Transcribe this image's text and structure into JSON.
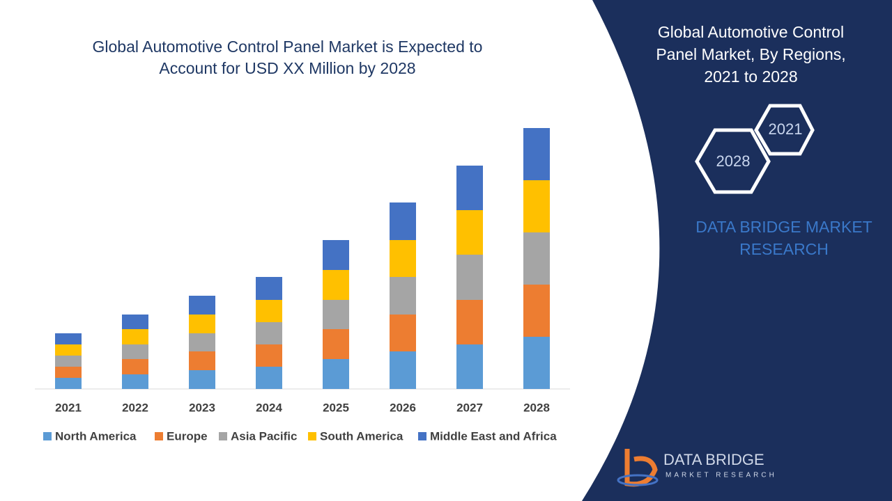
{
  "chart_data": {
    "type": "bar",
    "stacked": true,
    "title": "Global Automotive Control Panel Market is Expected to Account for USD XX Million by 2028",
    "categories": [
      "2021",
      "2022",
      "2023",
      "2024",
      "2025",
      "2026",
      "2027",
      "2028"
    ],
    "series": [
      {
        "name": "North America",
        "color": "#5b9bd5",
        "values": [
          16,
          21,
          27,
          32,
          43,
          54,
          64,
          75
        ]
      },
      {
        "name": "Europe",
        "color": "#ed7d31",
        "values": [
          16,
          22,
          27,
          32,
          43,
          53,
          64,
          75
        ]
      },
      {
        "name": "Asia Pacific",
        "color": "#a5a5a5",
        "values": [
          16,
          21,
          26,
          32,
          42,
          54,
          65,
          75
        ]
      },
      {
        "name": "South America",
        "color": "#ffc000",
        "values": [
          16,
          22,
          27,
          32,
          43,
          53,
          64,
          75
        ]
      },
      {
        "name": "Middle East and Africa",
        "color": "#4472c4",
        "values": [
          16,
          21,
          27,
          33,
          43,
          54,
          64,
          75
        ]
      }
    ]
  },
  "panel": {
    "title": "Global Automotive Control Panel Market, By Regions, 2021 to 2028",
    "hex_start": "2021",
    "hex_end": "2028",
    "brand": "DATA BRIDGE MARKET RESEARCH"
  },
  "logo": {
    "name": "DATA BRIDGE",
    "tagline": "MARKET RESEARCH"
  }
}
